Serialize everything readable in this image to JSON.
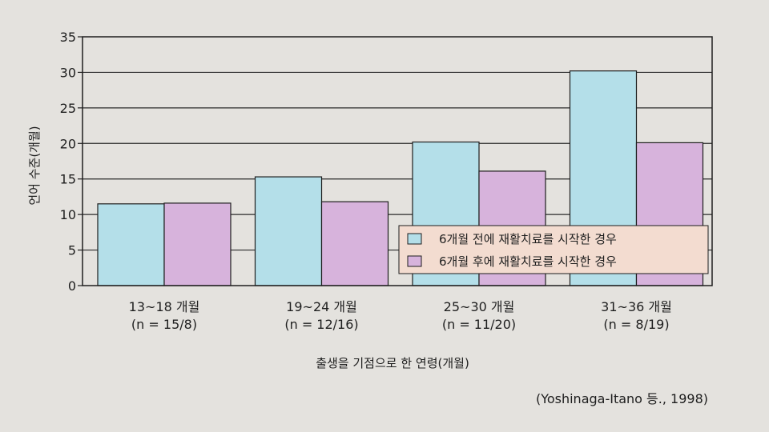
{
  "chart_data": {
    "type": "bar",
    "categories": [
      [
        "13~18 개월",
        "(n = 15/8)"
      ],
      [
        "19~24 개월",
        "(n = 12/16)"
      ],
      [
        "25~30 개월",
        "(n = 11/20)"
      ],
      [
        "31~36 개월",
        "(n = 8/19)"
      ]
    ],
    "series": [
      {
        "name": "6개월 전에 재활치료를 시작한 경우",
        "values": [
          11.5,
          15.3,
          20.2,
          30.2
        ],
        "color": "#b4dfe9"
      },
      {
        "name": "6개월 후에 재활치료를 시작한 경우",
        "values": [
          11.6,
          11.8,
          16.1,
          20.1
        ],
        "color": "#d7b3dc"
      }
    ],
    "ylabel": "언어 수준(개월)",
    "xlabel": "출생을 기점으로 한 연령(개월)",
    "ylim": [
      0,
      35
    ],
    "yticks": [
      0,
      5,
      10,
      15,
      20,
      25,
      30,
      35
    ],
    "grid": true,
    "legend_position": "lower-right",
    "legend_background": "#f3dcd0",
    "source": "(Yoshinaga-Itano 등., 1998)"
  }
}
